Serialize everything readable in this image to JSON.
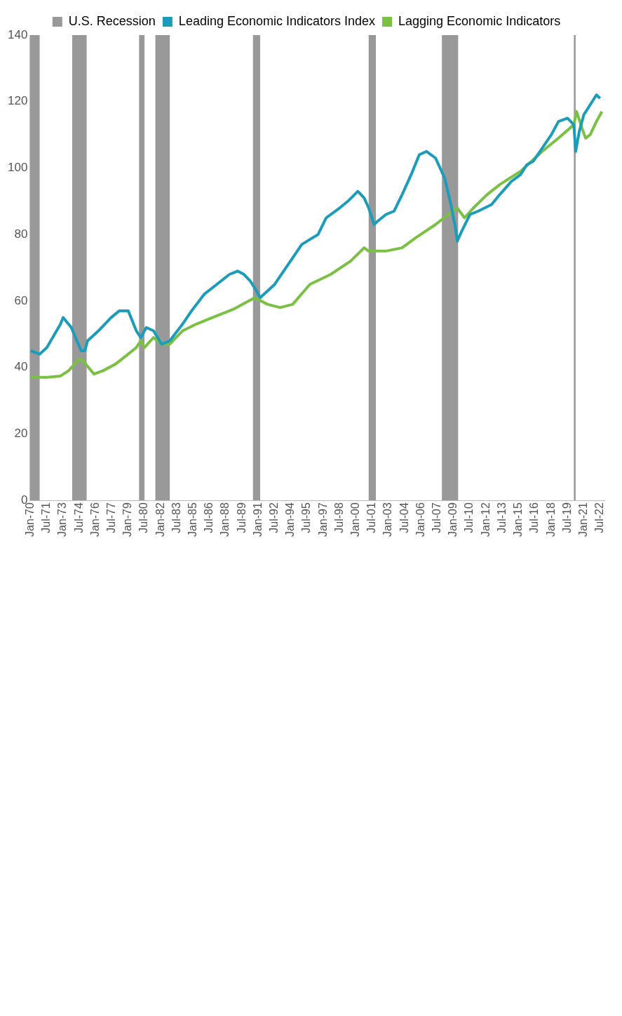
{
  "chart_data": {
    "type": "line",
    "legend": "top",
    "grid": false,
    "xlim": [
      "1969-12",
      "2022-12"
    ],
    "xticks": [
      {
        "value": "1970-01",
        "label": "Jan-70"
      },
      {
        "value": "1971-07",
        "label": "Jul-71"
      },
      {
        "value": "1973-01",
        "label": "Jan-73"
      },
      {
        "value": "1974-07",
        "label": "Jul-74"
      },
      {
        "value": "1976-01",
        "label": "Jan-76"
      },
      {
        "value": "1977-07",
        "label": "Jul-77"
      },
      {
        "value": "1979-01",
        "label": "Jan-79"
      },
      {
        "value": "1980-07",
        "label": "Jul-80"
      },
      {
        "value": "1982-01",
        "label": "Jan-82"
      },
      {
        "value": "1983-07",
        "label": "Jul-83"
      },
      {
        "value": "1985-01",
        "label": "Jan-85"
      },
      {
        "value": "1986-07",
        "label": "Jul-86"
      },
      {
        "value": "1988-01",
        "label": "Jan-88"
      },
      {
        "value": "1989-07",
        "label": "Jul-89"
      },
      {
        "value": "1991-01",
        "label": "Jan-91"
      },
      {
        "value": "1992-07",
        "label": "Jul-92"
      },
      {
        "value": "1994-01",
        "label": "Jan-94"
      },
      {
        "value": "1995-07",
        "label": "Jul-95"
      },
      {
        "value": "1997-01",
        "label": "Jan-97"
      },
      {
        "value": "1998-07",
        "label": "Jul-98"
      },
      {
        "value": "2000-01",
        "label": "Jan-00"
      },
      {
        "value": "2001-07",
        "label": "Jul-01"
      },
      {
        "value": "2003-01",
        "label": "Jan-03"
      },
      {
        "value": "2004-07",
        "label": "Jul-04"
      },
      {
        "value": "2006-01",
        "label": "Jan-06"
      },
      {
        "value": "2007-07",
        "label": "Jul-07"
      },
      {
        "value": "2009-01",
        "label": "Jan-09"
      },
      {
        "value": "2010-07",
        "label": "Jul-10"
      },
      {
        "value": "2012-01",
        "label": "Jan-12"
      },
      {
        "value": "2013-07",
        "label": "Jul-13"
      },
      {
        "value": "2015-01",
        "label": "Jan-15"
      },
      {
        "value": "2016-07",
        "label": "Jul-16"
      },
      {
        "value": "2018-01",
        "label": "Jan-18"
      },
      {
        "value": "2019-07",
        "label": "Jul-19"
      },
      {
        "value": "2021-01",
        "label": "Jan-21"
      },
      {
        "value": "2022-07",
        "label": "Jul-22"
      }
    ],
    "ylim": [
      0,
      140
    ],
    "yticks": [
      0,
      20,
      40,
      60,
      80,
      100,
      120,
      140
    ],
    "bands": [
      {
        "axis": "x",
        "from": "1969-12",
        "to": "1970-11",
        "label": "U.S. Recession",
        "color": "#999999"
      },
      {
        "axis": "x",
        "from": "1973-11",
        "to": "1975-03",
        "color": "#999999"
      },
      {
        "axis": "x",
        "from": "1980-01",
        "to": "1980-07",
        "color": "#999999"
      },
      {
        "axis": "x",
        "from": "1981-07",
        "to": "1982-11",
        "color": "#999999"
      },
      {
        "axis": "x",
        "from": "1990-07",
        "to": "1991-03",
        "color": "#999999"
      },
      {
        "axis": "x",
        "from": "2001-03",
        "to": "2001-11",
        "color": "#999999"
      },
      {
        "axis": "x",
        "from": "2007-12",
        "to": "2009-06",
        "color": "#999999"
      },
      {
        "axis": "x",
        "from": "2020-02",
        "to": "2020-04",
        "color": "#999999"
      }
    ],
    "series": [
      {
        "name": "Leading Economic Indicators Index",
        "color": "#1b9cba",
        "x": [
          "1970-01",
          "1970-11",
          "1971-07",
          "1972-10",
          "1973-01",
          "1973-10",
          "1974-09",
          "1975-01",
          "1975-04",
          "1976-04",
          "1977-06",
          "1978-03",
          "1979-01",
          "1979-10",
          "1980-03",
          "1980-09",
          "1981-05",
          "1982-02",
          "1982-11",
          "1984-01",
          "1984-11",
          "1986-01",
          "1987-03",
          "1988-05",
          "1989-02",
          "1989-09",
          "1990-04",
          "1990-11",
          "1991-03",
          "1991-11",
          "1992-07",
          "1994-03",
          "1995-01",
          "1996-01",
          "1996-07",
          "1997-04",
          "1998-07",
          "1999-04",
          "2000-03",
          "2000-10",
          "2001-03",
          "2001-09",
          "2002-01",
          "2002-10",
          "2003-07",
          "2004-04",
          "2005-02",
          "2005-11",
          "2006-07",
          "2007-05",
          "2008-03",
          "2008-10",
          "2009-03",
          "2009-05",
          "2009-10",
          "2010-07",
          "2011-04",
          "2012-07",
          "2013-04",
          "2014-05",
          "2015-03",
          "2015-10",
          "2016-05",
          "2017-03",
          "2018-01",
          "2018-09",
          "2019-07",
          "2020-02",
          "2020-04",
          "2020-08",
          "2021-01",
          "2021-08",
          "2022-03",
          "2022-07"
        ],
        "values": [
          45,
          44,
          46,
          53,
          55,
          52,
          45,
          45,
          48,
          51,
          55,
          57,
          57,
          51,
          49,
          52,
          51,
          47,
          48,
          53,
          57,
          62,
          65,
          68,
          69,
          68,
          66,
          63,
          61,
          63,
          65,
          73,
          77,
          79,
          80,
          85,
          88,
          90,
          93,
          91,
          88,
          83,
          84,
          86,
          87,
          92,
          98,
          104,
          105,
          103,
          97,
          89,
          82,
          78,
          81,
          86,
          87,
          89,
          92,
          96,
          98,
          101,
          102,
          106,
          110,
          114,
          115,
          113,
          105,
          111,
          116,
          119,
          122,
          121
        ]
      },
      {
        "name": "Lagging Economic Indicators",
        "color": "#7ac143",
        "x": [
          "1970-01",
          "1971-07",
          "1972-10",
          "1973-07",
          "1974-07",
          "1974-11",
          "1975-11",
          "1976-09",
          "1977-11",
          "1979-01",
          "1979-10",
          "1980-03",
          "1980-07",
          "1981-05",
          "1982-02",
          "1982-11",
          "1984-01",
          "1985-04",
          "1986-10",
          "1988-10",
          "1990-09",
          "1991-11",
          "1993-01",
          "1994-03",
          "1995-10",
          "1997-09",
          "1999-07",
          "2000-10",
          "2001-03",
          "2002-10",
          "2004-04",
          "2005-07",
          "2007-05",
          "2008-07",
          "2009-05",
          "2010-01",
          "2010-11",
          "2012-02",
          "2013-04",
          "2015-03",
          "2017-03",
          "2018-09",
          "2020-02",
          "2020-05",
          "2020-11",
          "2021-03",
          "2021-08",
          "2022-03",
          "2022-09"
        ],
        "values": [
          37,
          37,
          37.4,
          39,
          42.6,
          42,
          38,
          39,
          41,
          44,
          46,
          48,
          46,
          49,
          47,
          47,
          51,
          53,
          55,
          57.6,
          61,
          59,
          58,
          59,
          65,
          68,
          72,
          76,
          75,
          75,
          76,
          79,
          83,
          86,
          88,
          85,
          88,
          92,
          95,
          99,
          105,
          109,
          113,
          117,
          112,
          109,
          110,
          114,
          117
        ]
      }
    ]
  }
}
